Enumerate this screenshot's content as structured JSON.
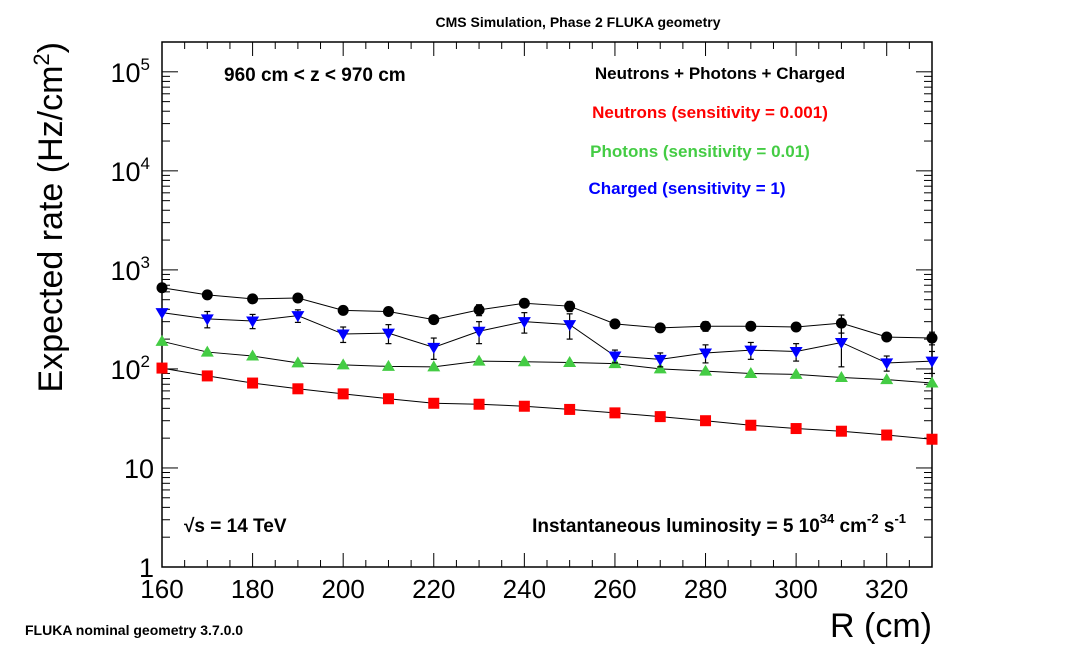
{
  "chart_data": {
    "type": "scatter",
    "title": "CMS Simulation, Phase 2 FLUKA geometry",
    "xlabel": "R (cm)",
    "ylabel": "Expected rate (Hz/cm²)",
    "xlim": [
      160,
      330
    ],
    "ylim": [
      1,
      200000
    ],
    "yscale": "log",
    "x_ticks": [
      160,
      180,
      200,
      220,
      240,
      260,
      280,
      300,
      320
    ],
    "y_ticks": [
      {
        "value": 1,
        "base": "1",
        "exp": ""
      },
      {
        "value": 10,
        "base": "10",
        "exp": ""
      },
      {
        "value": 100,
        "base": "10",
        "exp": "2"
      },
      {
        "value": 1000,
        "base": "10",
        "exp": "3"
      },
      {
        "value": 10000,
        "base": "10",
        "exp": "4"
      },
      {
        "value": 100000,
        "base": "10",
        "exp": "5"
      }
    ],
    "annotations": {
      "z_range": "960 cm < z < 970 cm",
      "sqrt_s": "√s = 14 TeV",
      "lumi_prefix": "Instantaneous luminosity = 5 10",
      "lumi_exp": "34",
      "lumi_unit_a": " cm",
      "lumi_unit_a_exp": "-2",
      "lumi_unit_b": " s",
      "lumi_unit_b_exp": "-1",
      "footer": "FLUKA nominal geometry 3.7.0.0"
    },
    "legend_position": "top-right",
    "x": [
      160,
      170,
      180,
      190,
      200,
      210,
      220,
      230,
      240,
      250,
      260,
      270,
      280,
      290,
      300,
      310,
      320,
      330
    ],
    "series": [
      {
        "name": "Neutrons + Photons + Charged",
        "color": "#000000",
        "marker": "circle",
        "values": [
          660,
          560,
          510,
          520,
          390,
          380,
          315,
          395,
          460,
          430,
          285,
          260,
          270,
          270,
          265,
          290,
          210,
          205
        ],
        "errors": [
          0,
          0,
          0,
          0,
          0,
          20,
          0,
          50,
          30,
          50,
          0,
          0,
          30,
          20,
          20,
          60,
          0,
          30
        ]
      },
      {
        "name": "Neutrons (sensitivity = 0.001)",
        "color": "#ff0000",
        "marker": "square",
        "values": [
          102,
          85,
          72,
          63,
          56,
          50,
          45,
          44,
          42,
          39,
          36,
          33,
          30,
          27,
          25,
          23.5,
          21.5,
          19.5
        ],
        "errors": [
          0,
          0,
          0,
          0,
          0,
          0,
          0,
          0,
          0,
          0,
          0,
          0,
          0,
          0,
          0,
          0,
          0,
          0
        ]
      },
      {
        "name": "Photons (sensitivity = 0.01)",
        "color": "#44cc44",
        "marker": "triangle-up",
        "values": [
          190,
          148,
          135,
          115,
          110,
          106,
          105,
          120,
          118,
          116,
          113,
          100,
          95,
          90,
          88,
          82,
          78,
          72
        ],
        "errors": [
          0,
          0,
          0,
          0,
          0,
          0,
          0,
          0,
          0,
          0,
          0,
          0,
          0,
          0,
          0,
          0,
          0,
          0
        ]
      },
      {
        "name": "Charged (sensitivity = 1)",
        "color": "#0000ff",
        "marker": "triangle-down",
        "values": [
          370,
          320,
          305,
          345,
          225,
          230,
          165,
          240,
          300,
          280,
          135,
          125,
          145,
          155,
          150,
          185,
          115,
          120
        ],
        "errors": [
          0,
          60,
          50,
          50,
          40,
          50,
          40,
          60,
          70,
          80,
          20,
          20,
          30,
          30,
          30,
          80,
          20,
          30
        ]
      }
    ]
  }
}
